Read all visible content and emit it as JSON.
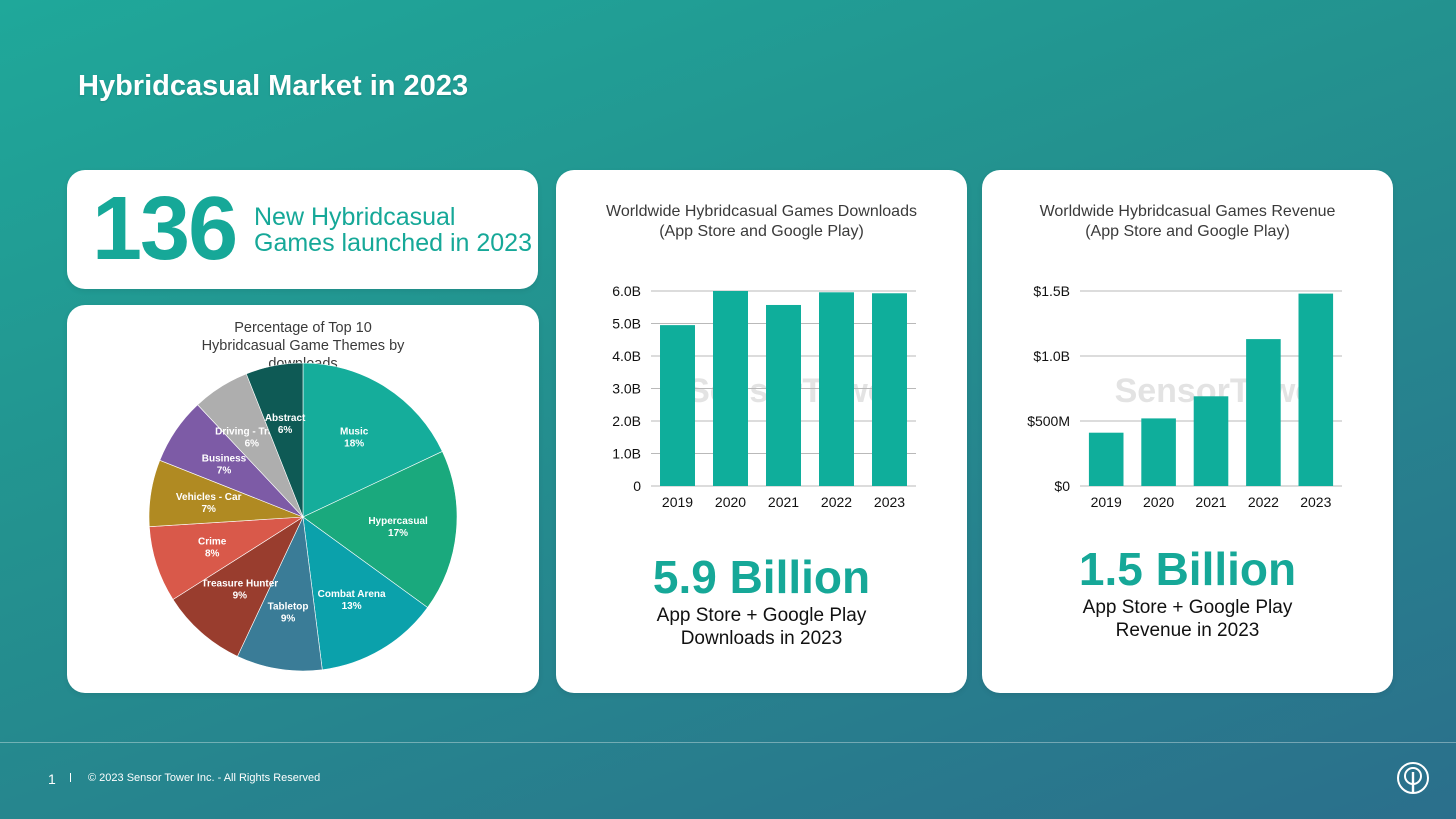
{
  "title": "Hybridcasual Market in 2023",
  "stat": {
    "number": "136",
    "label": "New Hybridcasual Games launched in 2023"
  },
  "colors": {
    "accent": "#16a898",
    "bar": "#0fae9b"
  },
  "chart_data": [
    {
      "type": "pie",
      "title": "Percentage of Top 10 Hybridcasual Game Themes by downloads",
      "slices": [
        {
          "label": "Music",
          "value": 18,
          "display": "18%",
          "color": "#15ad9b"
        },
        {
          "label": "Hypercasual",
          "value": 17,
          "display": "17%",
          "color": "#1aa97d"
        },
        {
          "label": "Combat Arena",
          "value": 13,
          "display": "13%",
          "color": "#0ba1ab"
        },
        {
          "label": "Tabletop",
          "value": 9,
          "display": "9%",
          "color": "#3a7c97"
        },
        {
          "label": "Treasure Hunter",
          "value": 9,
          "display": "9%",
          "color": "#993d2e"
        },
        {
          "label": "Crime",
          "value": 8,
          "display": "8%",
          "color": "#d9594a"
        },
        {
          "label": "Vehicles - Car",
          "value": 7,
          "display": "7%",
          "color": "#b08a22"
        },
        {
          "label": "Business",
          "value": 7,
          "display": "7%",
          "color": "#7d5ba6"
        },
        {
          "label": "Driving - Traffic",
          "value": 6,
          "display": "6%",
          "color": "#aeaeae"
        },
        {
          "label": "Abstract",
          "value": 6,
          "display": "6%",
          "color": "#0e5a55"
        }
      ]
    },
    {
      "type": "bar",
      "title": "Worldwide Hybridcasual Games Downloads (App Store and Google Play)",
      "categories": [
        "2019",
        "2020",
        "2021",
        "2022",
        "2023"
      ],
      "values": [
        4.95,
        6.0,
        5.57,
        5.96,
        5.93
      ],
      "unit": "B",
      "ylim": [
        0,
        6.0
      ],
      "yticks": [
        {
          "value": 0,
          "label": "0"
        },
        {
          "value": 1,
          "label": "1.0B"
        },
        {
          "value": 2,
          "label": "2.0B"
        },
        {
          "value": 3,
          "label": "3.0B"
        },
        {
          "value": 4,
          "label": "4.0B"
        },
        {
          "value": 5,
          "label": "5.0B"
        },
        {
          "value": 6,
          "label": "6.0B"
        }
      ],
      "grid": true,
      "headline": "5.9 Billion",
      "subline": [
        "App Store + Google Play",
        "Downloads in 2023"
      ]
    },
    {
      "type": "bar",
      "title": "Worldwide Hybridcasual Games Revenue (App Store and Google Play)",
      "categories": [
        "2019",
        "2020",
        "2021",
        "2022",
        "2023"
      ],
      "values": [
        0.41,
        0.52,
        0.69,
        1.13,
        1.48
      ],
      "unit": "$B",
      "ylim": [
        0,
        1.5
      ],
      "yticks": [
        {
          "value": 0,
          "label": "$0"
        },
        {
          "value": 0.5,
          "label": "$500M"
        },
        {
          "value": 1.0,
          "label": "$1.0B"
        },
        {
          "value": 1.5,
          "label": "$1.5B"
        }
      ],
      "grid": true,
      "headline": "1.5 Billion",
      "subline": [
        "App Store + Google Play",
        "Revenue in 2023"
      ]
    }
  ],
  "footer": {
    "page": "1",
    "copyright": "© 2023 Sensor Tower Inc. - All Rights Reserved",
    "logo_icon": "sensor-tower-logo-icon",
    "watermark": "SensorTower"
  }
}
